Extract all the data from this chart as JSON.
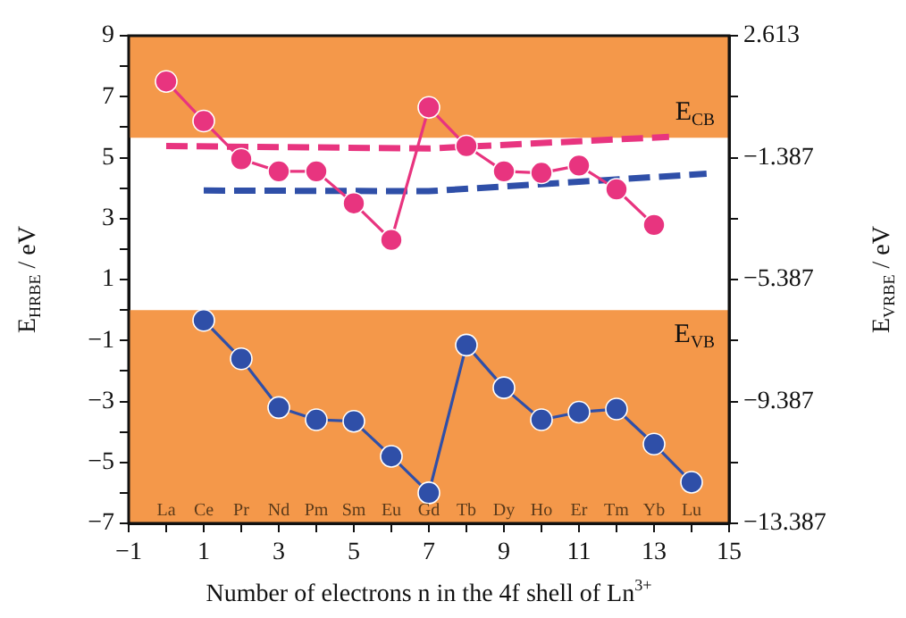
{
  "chart_data": {
    "type": "line",
    "xlabel": "Number of electrons n in the 4f shell of Ln$^{3+}$",
    "ylabel": "E$_{HRBE}$ / eV",
    "y2label": "E$_{VRBE}$ / eV",
    "xlim": [
      -1,
      15
    ],
    "xticks": [
      -1,
      {
        "value": 0,
        "label": null
      },
      1,
      {
        "value": 2,
        "label": null
      },
      3,
      {
        "value": 4,
        "label": null
      },
      5,
      {
        "value": 6,
        "label": null
      },
      7,
      {
        "value": 8,
        "label": null
      },
      9,
      {
        "value": 10,
        "label": null
      },
      11,
      {
        "value": 12,
        "label": null
      },
      13,
      {
        "value": 14,
        "label": null
      },
      15
    ],
    "ylim": [
      -7,
      9
    ],
    "yticks": [
      -7,
      {
        "value": -6,
        "label": null
      },
      -5,
      {
        "value": -4,
        "label": null
      },
      -3,
      {
        "value": -2,
        "label": null
      },
      -1,
      {
        "value": 0,
        "label": null
      },
      1,
      {
        "value": 2,
        "label": null
      },
      3,
      {
        "value": 4,
        "label": null
      },
      5,
      {
        "value": 6,
        "label": null
      },
      7,
      {
        "value": 8,
        "label": null
      },
      9
    ],
    "y2lim": [
      -13.387,
      2.613
    ],
    "y2ticks": [
      -13.387,
      {
        "value": -11.387,
        "label": null
      },
      -9.387,
      {
        "value": -7.387,
        "label": null
      },
      -5.387,
      {
        "value": -3.387,
        "label": null
      },
      -1.387,
      {
        "value": 0.613,
        "label": null
      },
      2.613
    ],
    "grid": false,
    "legend": false,
    "series": [
      {
        "color": "#e8347f",
        "x": [
          0,
          1,
          2,
          3,
          4,
          5,
          6,
          7,
          8,
          9,
          10,
          11,
          12,
          13
        ],
        "values": [
          7.5,
          6.2,
          4.95,
          4.55,
          4.55,
          3.5,
          2.3,
          6.65,
          5.38,
          4.55,
          4.5,
          4.74,
          3.96,
          2.79
        ],
        "marker": "circle"
      },
      {
        "color": "#2f4fa8",
        "x": [
          1,
          2,
          3,
          4,
          5,
          6,
          7,
          8,
          9,
          10,
          11,
          12,
          13,
          14
        ],
        "values": [
          -0.34,
          -1.6,
          -3.2,
          -3.6,
          -3.65,
          -4.8,
          -6.0,
          -1.15,
          -2.55,
          -3.6,
          -3.35,
          -3.25,
          -4.4,
          -5.65
        ],
        "marker": "circle"
      },
      {
        "color": "#e8347f",
        "x": [
          0,
          7,
          13.4
        ],
        "values": [
          5.38,
          5.3,
          5.68
        ],
        "marker": "none",
        "line_style": "dashed"
      },
      {
        "color": "#2f4fa8",
        "x": [
          1,
          7,
          14.4
        ],
        "values": [
          3.92,
          3.9,
          4.47
        ],
        "marker": "none",
        "line_style": "dashed"
      }
    ],
    "bands": [
      {
        "axis": "y",
        "from": 5.65,
        "to": 9,
        "label": "E$_{CB}$",
        "color": "#f4984a"
      },
      {
        "axis": "y",
        "from": -7,
        "to": 0,
        "label": "E$_{VB}$",
        "color": "#f4984a"
      }
    ],
    "annotations": [
      "La",
      "Ce",
      "Pr",
      "Nd",
      "Pm",
      "Sm",
      "Eu",
      "Gd",
      "Tb",
      "Dy",
      "Ho",
      "Er",
      "Tm",
      "Yb",
      "Lu"
    ]
  }
}
